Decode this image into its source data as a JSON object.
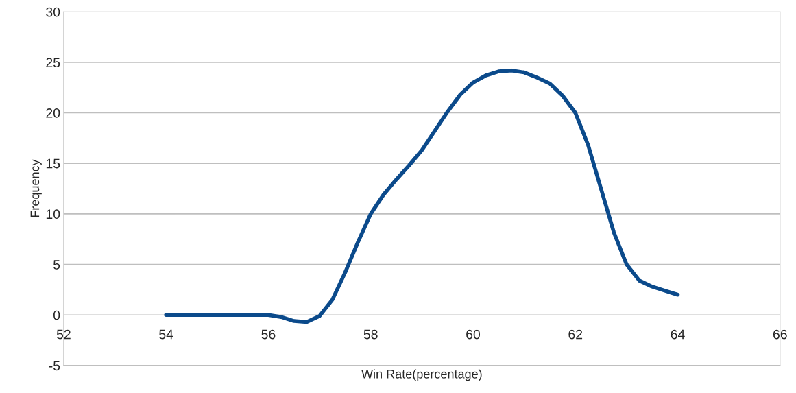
{
  "chart_data": {
    "type": "line",
    "xlabel": "Win Rate(percentage)",
    "ylabel": "Frequency",
    "x": [
      54,
      54.5,
      55,
      55.5,
      56,
      56.25,
      56.5,
      56.75,
      57,
      57.25,
      57.5,
      57.75,
      58,
      58.25,
      58.5,
      58.75,
      59,
      59.25,
      59.5,
      59.75,
      60,
      60.25,
      60.5,
      60.75,
      61,
      61.25,
      61.5,
      61.75,
      62,
      62.25,
      62.5,
      62.75,
      63,
      63.25,
      63.5,
      63.75,
      64
    ],
    "series": [
      {
        "color": "#0b4a8b",
        "values": [
          0,
          0,
          0,
          0,
          0,
          -0.2,
          -0.6,
          -0.7,
          -0.1,
          1.5,
          4.2,
          7.2,
          10,
          11.9,
          13.4,
          14.8,
          16.3,
          18.2,
          20.1,
          21.8,
          23,
          23.7,
          24.1,
          24.2,
          24,
          23.5,
          22.9,
          21.7,
          20,
          16.8,
          12.5,
          8.2,
          5,
          3.4,
          2.8,
          2.4,
          2
        ]
      }
    ],
    "xlim": [
      52,
      66
    ],
    "xticks": [
      52,
      54,
      56,
      58,
      60,
      62,
      64,
      66
    ],
    "ylim": [
      -5,
      30
    ],
    "yticks": [
      -5,
      0,
      5,
      10,
      15,
      20,
      25,
      30
    ],
    "grid": "y",
    "marker": "none",
    "line_style": "solid"
  }
}
